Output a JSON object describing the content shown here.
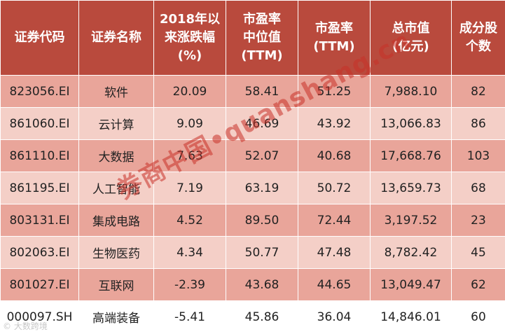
{
  "table": {
    "headers": [
      [
        "证券代码"
      ],
      [
        "证券名称"
      ],
      [
        "2018年以",
        "来涨跌幅",
        "(%)"
      ],
      [
        "市盈率",
        "中位值",
        "(TTM)"
      ],
      [
        "市盈率",
        "(TTM)"
      ],
      [
        "总市值",
        "(亿元)"
      ],
      [
        "成分股",
        "个数"
      ]
    ],
    "rows": [
      [
        "823056.EI",
        "软件",
        "20.09",
        "58.41",
        "51.25",
        "7,988.10",
        "82"
      ],
      [
        "861060.EI",
        "云计算",
        "9.09",
        "46.69",
        "43.92",
        "13,066.83",
        "86"
      ],
      [
        "861110.EI",
        "大数据",
        "7.63",
        "52.07",
        "40.68",
        "17,668.76",
        "103"
      ],
      [
        "861195.EI",
        "人工智能",
        "7.19",
        "63.19",
        "50.72",
        "13,659.73",
        "68"
      ],
      [
        "803131.EI",
        "集成电路",
        "4.52",
        "89.50",
        "72.44",
        "3,197.52",
        "23"
      ],
      [
        "802063.EI",
        "生物医药",
        "4.34",
        "50.77",
        "47.48",
        "8,782.42",
        "45"
      ],
      [
        "801027.EI",
        "互联网",
        "-2.39",
        "43.68",
        "44.65",
        "13,049.47",
        "62"
      ],
      [
        "000097.SH",
        "高端装备",
        "-5.41",
        "45.86",
        "36.04",
        "14,846.01",
        "60"
      ]
    ]
  },
  "watermark": "券商中国•quanshang.cn",
  "source_mark": "© 大数跨境"
}
